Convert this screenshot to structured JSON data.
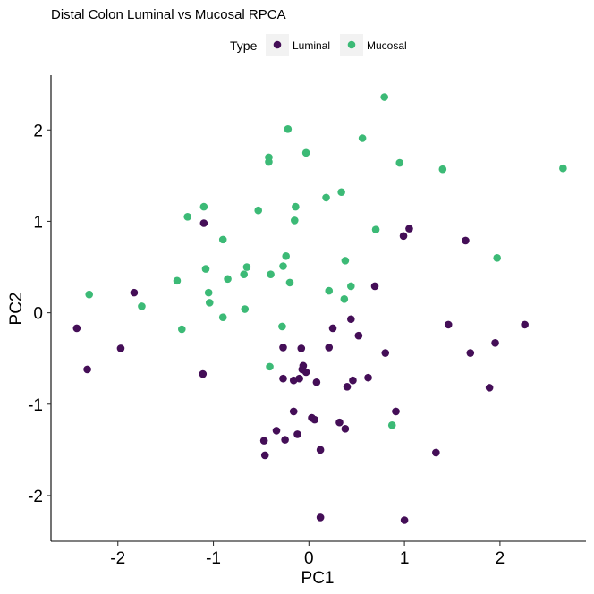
{
  "chart_data": {
    "type": "scatter",
    "title": "Distal Colon Luminal vs Mucosal RPCA",
    "xlabel": "PC1",
    "ylabel": "PC2",
    "xlim": [
      -2.7,
      2.9
    ],
    "ylim": [
      -2.5,
      2.6
    ],
    "xticks": [
      -2,
      -1,
      0,
      1,
      2
    ],
    "yticks": [
      -2,
      -1,
      0,
      1,
      2
    ],
    "grid": false,
    "legend_title": "Type",
    "legend_position": "top",
    "series": [
      {
        "name": "Luminal",
        "color": "#440e57",
        "points": [
          [
            -2.43,
            -0.17
          ],
          [
            -2.32,
            -0.62
          ],
          [
            -1.97,
            -0.39
          ],
          [
            -1.83,
            0.22
          ],
          [
            -1.1,
            0.98
          ],
          [
            -1.11,
            -0.67
          ],
          [
            -0.47,
            -1.4
          ],
          [
            -0.46,
            -1.56
          ],
          [
            -0.34,
            -1.29
          ],
          [
            -0.27,
            -0.38
          ],
          [
            -0.27,
            -0.72
          ],
          [
            -0.25,
            -1.39
          ],
          [
            -0.16,
            -1.08
          ],
          [
            -0.16,
            -0.74
          ],
          [
            -0.1,
            -0.72
          ],
          [
            -0.12,
            -1.33
          ],
          [
            -0.08,
            -0.39
          ],
          [
            -0.07,
            -0.62
          ],
          [
            -0.06,
            -0.58
          ],
          [
            -0.03,
            -0.65
          ],
          [
            0.03,
            -1.15
          ],
          [
            0.06,
            -1.17
          ],
          [
            0.08,
            -0.76
          ],
          [
            0.12,
            -1.5
          ],
          [
            0.12,
            -2.24
          ],
          [
            0.21,
            -0.38
          ],
          [
            0.25,
            -0.17
          ],
          [
            0.32,
            -1.2
          ],
          [
            0.38,
            -1.27
          ],
          [
            0.4,
            -0.81
          ],
          [
            0.44,
            -0.07
          ],
          [
            0.46,
            -0.74
          ],
          [
            0.52,
            -0.25
          ],
          [
            0.62,
            -0.71
          ],
          [
            0.69,
            0.29
          ],
          [
            0.8,
            -0.44
          ],
          [
            0.91,
            -1.08
          ],
          [
            0.99,
            0.84
          ],
          [
            1.0,
            -2.27
          ],
          [
            1.05,
            0.92
          ],
          [
            1.33,
            -1.53
          ],
          [
            1.46,
            -0.13
          ],
          [
            1.64,
            0.79
          ],
          [
            1.69,
            -0.44
          ],
          [
            1.89,
            -0.82
          ],
          [
            1.95,
            -0.33
          ],
          [
            2.26,
            -0.13
          ]
        ]
      },
      {
        "name": "Mucosal",
        "color": "#3cba76",
        "points": [
          [
            -2.3,
            0.2
          ],
          [
            -1.75,
            0.07
          ],
          [
            -1.38,
            0.35
          ],
          [
            -1.33,
            -0.18
          ],
          [
            -1.27,
            1.05
          ],
          [
            -1.1,
            1.16
          ],
          [
            -1.08,
            0.48
          ],
          [
            -1.05,
            0.22
          ],
          [
            -1.04,
            0.11
          ],
          [
            -0.9,
            0.8
          ],
          [
            -0.9,
            -0.05
          ],
          [
            -0.85,
            0.37
          ],
          [
            -0.68,
            0.42
          ],
          [
            -0.65,
            0.5
          ],
          [
            -0.67,
            0.04
          ],
          [
            -0.53,
            1.12
          ],
          [
            -0.42,
            1.7
          ],
          [
            -0.42,
            1.65
          ],
          [
            -0.4,
            0.42
          ],
          [
            -0.41,
            -0.59
          ],
          [
            -0.28,
            -0.15
          ],
          [
            -0.27,
            0.51
          ],
          [
            -0.24,
            0.62
          ],
          [
            -0.22,
            2.01
          ],
          [
            -0.2,
            0.33
          ],
          [
            -0.15,
            1.01
          ],
          [
            -0.14,
            1.16
          ],
          [
            -0.03,
            1.75
          ],
          [
            0.18,
            1.26
          ],
          [
            0.21,
            0.24
          ],
          [
            0.34,
            1.32
          ],
          [
            0.37,
            0.15
          ],
          [
            0.38,
            0.57
          ],
          [
            0.44,
            0.29
          ],
          [
            0.56,
            1.91
          ],
          [
            0.7,
            0.91
          ],
          [
            0.79,
            2.36
          ],
          [
            0.87,
            -1.23
          ],
          [
            0.95,
            1.64
          ],
          [
            1.4,
            1.57
          ],
          [
            1.97,
            0.6
          ],
          [
            2.66,
            1.58
          ]
        ]
      }
    ]
  }
}
